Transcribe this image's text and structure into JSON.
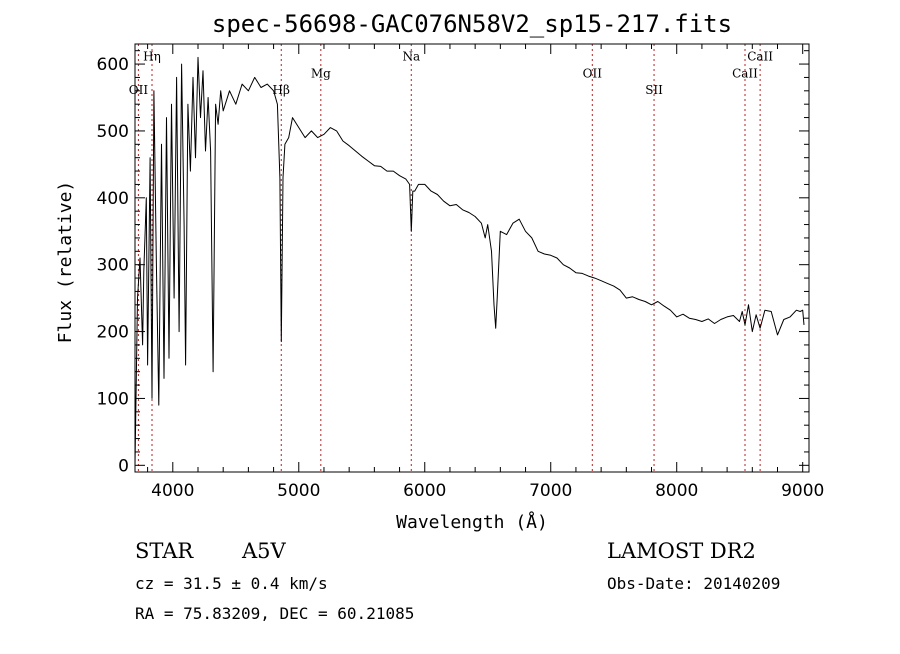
{
  "chart_data": {
    "type": "line",
    "title": "spec-56698-GAC076N58V2_sp15-217.fits",
    "xlabel": "Wavelength (Å)",
    "ylabel": "Flux (relative)",
    "xlim": [
      3700,
      9050
    ],
    "ylim": [
      -10,
      630
    ],
    "x_ticks": [
      4000,
      5000,
      6000,
      7000,
      8000,
      9000
    ],
    "x_tick_labels": [
      "4000",
      "5000",
      "6000",
      "7000",
      "8000",
      "9000"
    ],
    "y_ticks": [
      0,
      100,
      200,
      300,
      400,
      500,
      600
    ],
    "y_tick_labels": [
      "0",
      "100",
      "200",
      "300",
      "400",
      "500",
      "600"
    ],
    "grid": false,
    "line_color": "#000000",
    "marker_color": "#b22222",
    "series": [
      {
        "x": [
          3700,
          3720,
          3740,
          3760,
          3770,
          3790,
          3800,
          3820,
          3835,
          3850,
          3870,
          3889,
          3910,
          3930,
          3950,
          3970,
          3990,
          4010,
          4030,
          4050,
          4070,
          4090,
          4102,
          4120,
          4140,
          4160,
          4180,
          4200,
          4220,
          4240,
          4260,
          4280,
          4300,
          4320,
          4340,
          4360,
          4380,
          4400,
          4450,
          4500,
          4550,
          4600,
          4650,
          4700,
          4750,
          4800,
          4830,
          4850,
          4861,
          4875,
          4890,
          4920,
          4950,
          5000,
          5050,
          5100,
          5150,
          5200,
          5250,
          5300,
          5350,
          5400,
          5450,
          5500,
          5550,
          5600,
          5650,
          5700,
          5750,
          5800,
          5850,
          5880,
          5893,
          5905,
          5920,
          5950,
          6000,
          6050,
          6100,
          6150,
          6200,
          6250,
          6300,
          6350,
          6400,
          6450,
          6480,
          6500,
          6530,
          6550,
          6563,
          6575,
          6600,
          6650,
          6700,
          6750,
          6800,
          6850,
          6900,
          6950,
          7000,
          7050,
          7100,
          7150,
          7200,
          7250,
          7300,
          7350,
          7400,
          7450,
          7500,
          7550,
          7600,
          7650,
          7700,
          7750,
          7800,
          7850,
          7900,
          7950,
          8000,
          8050,
          8100,
          8150,
          8200,
          8250,
          8300,
          8350,
          8400,
          8450,
          8498,
          8520,
          8542,
          8570,
          8600,
          8630,
          8662,
          8700,
          8750,
          8800,
          8850,
          8900,
          8950,
          8980,
          9000,
          9010
        ],
        "y": [
          0,
          250,
          310,
          180,
          290,
          400,
          150,
          460,
          100,
          560,
          300,
          90,
          480,
          130,
          520,
          160,
          540,
          250,
          580,
          200,
          600,
          360,
          150,
          540,
          440,
          580,
          460,
          610,
          520,
          590,
          470,
          550,
          470,
          140,
          540,
          510,
          560,
          530,
          560,
          540,
          570,
          560,
          580,
          565,
          570,
          560,
          540,
          430,
          185,
          430,
          480,
          490,
          520,
          505,
          490,
          500,
          490,
          495,
          505,
          500,
          485,
          478,
          470,
          462,
          455,
          448,
          447,
          440,
          440,
          433,
          428,
          420,
          350,
          410,
          410,
          420,
          420,
          410,
          405,
          395,
          388,
          390,
          382,
          378,
          372,
          362,
          340,
          360,
          320,
          240,
          205,
          250,
          350,
          345,
          362,
          368,
          350,
          340,
          320,
          316,
          314,
          310,
          300,
          295,
          288,
          287,
          283,
          280,
          276,
          272,
          268,
          262,
          250,
          252,
          248,
          245,
          240,
          245,
          238,
          232,
          222,
          226,
          220,
          218,
          215,
          219,
          212,
          218,
          222,
          224,
          215,
          230,
          210,
          240,
          200,
          225,
          205,
          232,
          230,
          195,
          218,
          222,
          232,
          230,
          232,
          210
        ]
      }
    ],
    "line_markers": [
      {
        "label": "Hη",
        "x": 3835,
        "label_y": 605
      },
      {
        "label": "OII",
        "x": 3727,
        "label_y": 555
      },
      {
        "label": "Hβ",
        "x": 4861,
        "label_y": 555
      },
      {
        "label": "Mg",
        "x": 5175,
        "label_y": 580
      },
      {
        "label": "Na",
        "x": 5893,
        "label_y": 605
      },
      {
        "label": "OII",
        "x": 7330,
        "label_y": 580
      },
      {
        "label": "SII",
        "x": 7820,
        "label_y": 555
      },
      {
        "label": "CaII",
        "x": 8542,
        "label_y": 580
      },
      {
        "label": "CaII",
        "x": 8662,
        "label_y": 605
      }
    ]
  },
  "info": {
    "class_label": "STAR",
    "subclass": "A5V",
    "survey": "LAMOST DR2",
    "cz_line": "cz = 31.5 ± 0.4 km/s",
    "obs_date_line": "Obs-Date: 20140209",
    "radec_line": "RA =  75.83209, DEC =  60.21085"
  }
}
